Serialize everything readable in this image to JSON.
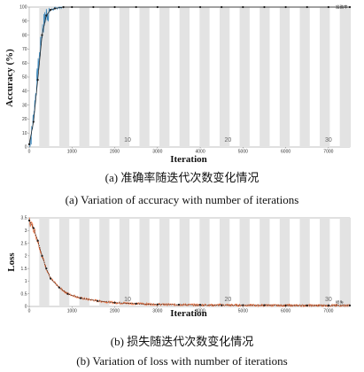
{
  "captions": {
    "a_cn": "(a)  准确率随迭代次数变化情况",
    "a_en": "(a) Variation of accuracy with number of iterations",
    "b_cn": "(b)  损失随迭代次数变化情况",
    "b_en": "(b) Variation of loss with number of iterations"
  },
  "colors": {
    "raw_accuracy": "#1f77b4",
    "raw_loss": "#e8571c",
    "smoothed": "#1a1a1a",
    "band_gray": "#e3e3e3"
  },
  "chart_data": [
    {
      "type": "line",
      "ylabel": "Accuracy (%)",
      "xlabel": "Iteration",
      "xlim": [
        0,
        7500
      ],
      "ylim": [
        0,
        100
      ],
      "x_ticks": [
        "0",
        "1000",
        "2000",
        "3000",
        "4000",
        "5000",
        "6000",
        "7000"
      ],
      "y_ticks": [
        "0",
        "10",
        "20",
        "30",
        "40",
        "50",
        "60",
        "70",
        "80",
        "90",
        "100"
      ],
      "epoch_labels": [
        {
          "label": "10",
          "x": 2300
        },
        {
          "label": "20",
          "x": 4650
        },
        {
          "label": "30",
          "x": 7000
        }
      ],
      "legend": [
        {
          "name": "准确率",
          "value": 100
        }
      ],
      "series": [
        {
          "name": "raw",
          "style": "noisy",
          "x": [
            0,
            50,
            100,
            150,
            200,
            250,
            300,
            350,
            400,
            500,
            600,
            700,
            800
          ],
          "y": [
            2,
            8,
            22,
            38,
            55,
            68,
            82,
            90,
            95,
            98,
            99,
            100,
            100
          ]
        },
        {
          "name": "smoothed",
          "style": "markers",
          "x": [
            0,
            100,
            200,
            300,
            400,
            500,
            600,
            800,
            1000,
            1500,
            2000,
            2500,
            3000,
            3500,
            4000,
            4500,
            5000,
            5500,
            6000,
            6500,
            7000,
            7500
          ],
          "y": [
            2,
            18,
            48,
            80,
            94,
            98,
            99,
            100,
            100,
            100,
            100,
            100,
            100,
            100,
            100,
            100,
            100,
            100,
            100,
            100,
            100,
            100
          ]
        }
      ]
    },
    {
      "type": "line",
      "ylabel": "Loss",
      "xlabel": "Iteration",
      "xlim": [
        0,
        7500
      ],
      "ylim": [
        0,
        3.5
      ],
      "x_ticks": [
        "0",
        "1000",
        "2000",
        "3000",
        "4000",
        "5000",
        "6000",
        "7000"
      ],
      "y_ticks": [
        "0",
        "0.5",
        "1",
        "1.5",
        "2",
        "2.5",
        "3",
        "3.5"
      ],
      "epoch_labels": [
        {
          "label": "10",
          "x": 2300
        },
        {
          "label": "20",
          "x": 4650
        },
        {
          "label": "30",
          "x": 7000
        }
      ],
      "legend": [
        {
          "name": "损失",
          "value": 0
        }
      ],
      "series": [
        {
          "name": "raw",
          "style": "noisy",
          "x": [
            0,
            100,
            200,
            300,
            400,
            500,
            700,
            900,
            1200,
            1600,
            2000,
            2500,
            3000,
            4000,
            5000,
            6000,
            7000,
            7500
          ],
          "y": [
            3.4,
            3.1,
            2.6,
            2.0,
            1.5,
            1.1,
            0.75,
            0.5,
            0.33,
            0.22,
            0.15,
            0.11,
            0.08,
            0.06,
            0.05,
            0.04,
            0.04,
            0.04
          ]
        },
        {
          "name": "smoothed",
          "style": "markers",
          "x": [
            0,
            100,
            200,
            300,
            400,
            500,
            700,
            900,
            1200,
            1600,
            2000,
            2500,
            3000,
            3500,
            4000,
            4500,
            5000,
            5500,
            6000,
            6500,
            7000,
            7500
          ],
          "y": [
            3.4,
            3.1,
            2.6,
            2.0,
            1.5,
            1.1,
            0.75,
            0.5,
            0.33,
            0.22,
            0.15,
            0.11,
            0.08,
            0.07,
            0.06,
            0.05,
            0.05,
            0.05,
            0.04,
            0.04,
            0.04,
            0.04
          ]
        }
      ]
    }
  ]
}
